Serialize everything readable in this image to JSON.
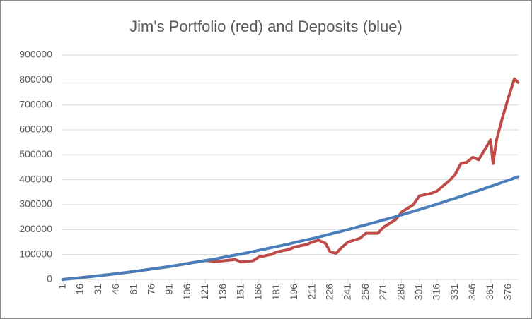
{
  "chart_data": {
    "type": "line",
    "title": "Jim's Portfolio (red) and Deposits (blue)",
    "x": [
      1,
      16,
      31,
      46,
      61,
      76,
      91,
      106,
      121,
      130,
      136,
      146,
      151,
      161,
      166,
      176,
      181,
      191,
      196,
      206,
      211,
      216,
      222,
      226,
      231,
      236,
      241,
      251,
      256,
      266,
      271,
      276,
      281,
      286,
      296,
      301,
      311,
      316,
      326,
      331,
      336,
      341,
      346,
      351,
      356,
      361,
      363,
      366,
      371,
      376,
      379,
      381,
      384
    ],
    "series": [
      {
        "name": "Portfolio",
        "color": "#be4b48",
        "values": [
          0,
          7000,
          15000,
          23000,
          32000,
          42000,
          52000,
          64000,
          76000,
          72000,
          75000,
          80000,
          70000,
          75000,
          90000,
          100000,
          110000,
          120000,
          130000,
          140000,
          150000,
          158000,
          145000,
          110000,
          105000,
          130000,
          150000,
          165000,
          185000,
          185000,
          210000,
          225000,
          240000,
          270000,
          300000,
          335000,
          345000,
          355000,
          395000,
          420000,
          465000,
          470000,
          490000,
          480000,
          520000,
          560000,
          465000,
          560000,
          650000,
          730000,
          775000,
          805000,
          790000
        ]
      },
      {
        "name": "Deposits",
        "color": "#4a7ebb",
        "values": [
          0,
          7000,
          15000,
          23000,
          32000,
          42000,
          52000,
          64000,
          76000,
          83000,
          89000,
          98000,
          102000,
          112000,
          117000,
          127000,
          132000,
          142000,
          148000,
          159000,
          164000,
          170000,
          177000,
          182000,
          188000,
          194000,
          200000,
          213000,
          219000,
          232000,
          239000,
          245000,
          252000,
          259000,
          273000,
          280000,
          295000,
          302000,
          318000,
          325000,
          333000,
          341000,
          349000,
          357000,
          365000,
          373000,
          376000,
          381000,
          390000,
          398000,
          403000,
          407000,
          412000
        ]
      }
    ],
    "xlim": [
      1,
      384
    ],
    "xticks": [
      1,
      16,
      31,
      46,
      61,
      76,
      91,
      106,
      121,
      136,
      151,
      166,
      181,
      196,
      211,
      226,
      241,
      256,
      271,
      286,
      301,
      316,
      331,
      346,
      361,
      376
    ],
    "ylim": [
      0,
      900000
    ],
    "yticks": [
      0,
      100000,
      200000,
      300000,
      400000,
      500000,
      600000,
      700000,
      800000,
      900000
    ],
    "grid": true
  }
}
